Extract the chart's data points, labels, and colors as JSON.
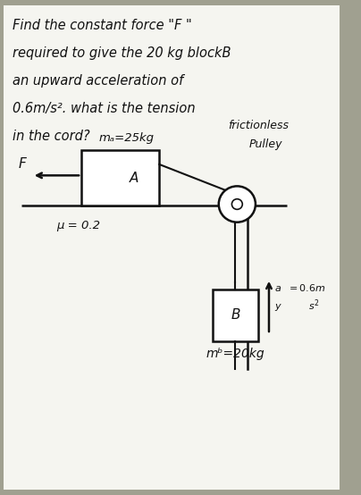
{
  "bg_color": "#a0a090",
  "panel_color": "#f5f5f0",
  "title_lines": [
    "Find the constant force \"F \"",
    "required to give the 20 kg blockB",
    "an upward acceleration of",
    "0.6m/s². what is the tension",
    "in the cord?"
  ],
  "label_mA": "mₐ=25kg",
  "label_frictionless": "frictionless",
  "label_pulley": "Pulley",
  "label_F": "F",
  "label_A": "A",
  "label_mu": "μ = 0.2",
  "label_ay_line1": "↑a  =0.6m",
  "label_ay_line2": "y      s²",
  "label_B": "B",
  "label_mB": "mᵇ=20kg",
  "text_color": "#111111",
  "line_color": "#111111"
}
